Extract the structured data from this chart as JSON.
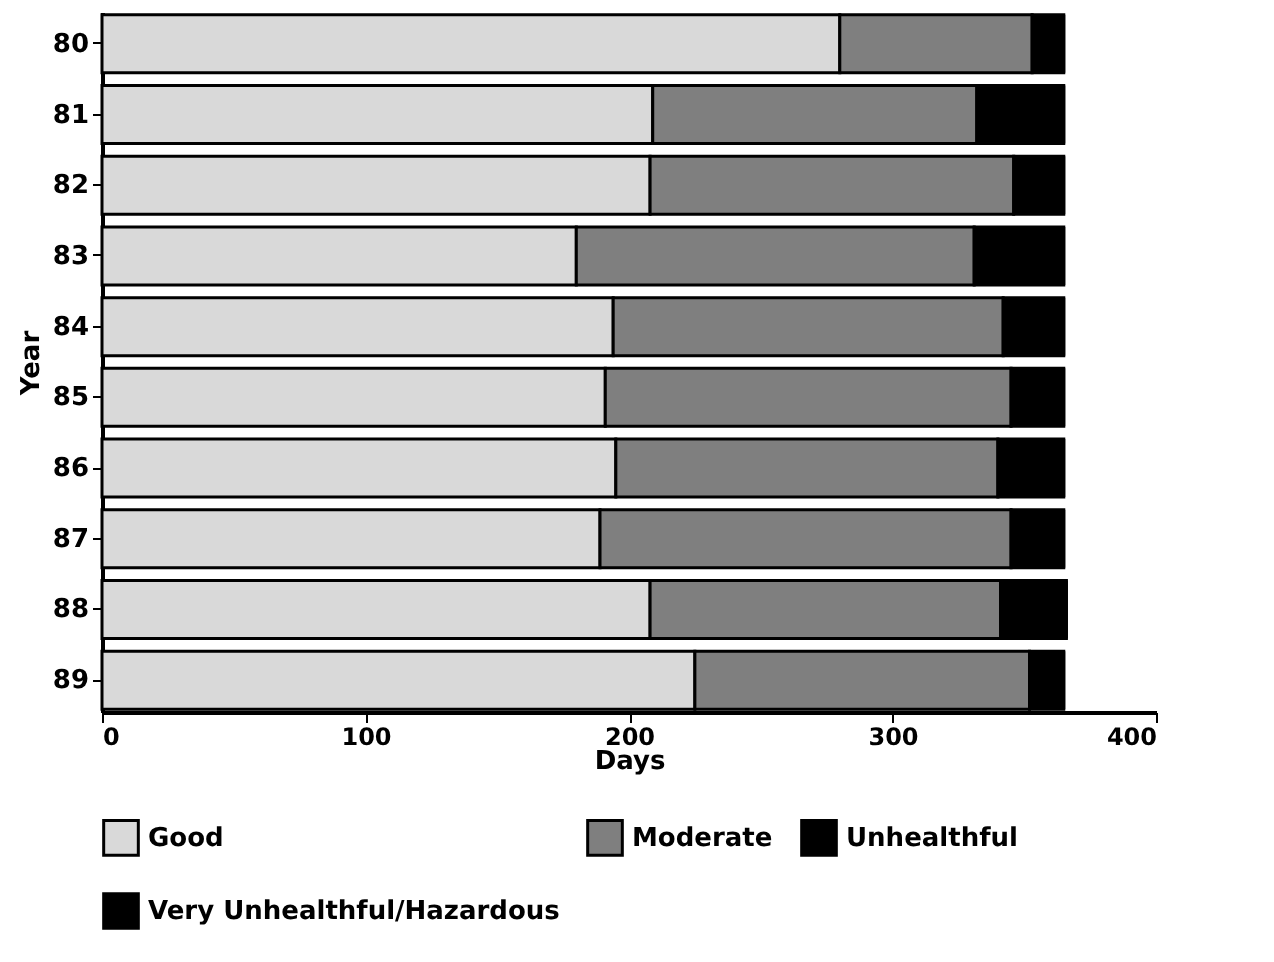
{
  "chart_data": {
    "type": "bar",
    "orientation": "horizontal",
    "stacked": true,
    "xlabel": "Days",
    "ylabel": "Year",
    "categories": [
      "80",
      "81",
      "82",
      "83",
      "84",
      "85",
      "86",
      "87",
      "88",
      "89"
    ],
    "xlim": [
      0,
      400
    ],
    "xticks": [
      0,
      100,
      200,
      300,
      400
    ],
    "grid": false,
    "legend": "bottom",
    "series": [
      {
        "name": "Good",
        "color": "#d9d9d9",
        "values": [
          280,
          209,
          208,
          180,
          194,
          191,
          195,
          189,
          208,
          225
        ]
      },
      {
        "name": "Moderate",
        "color": "#7f7f7f",
        "values": [
          73,
          123,
          138,
          151,
          148,
          154,
          145,
          156,
          133,
          127
        ]
      },
      {
        "name": "Unhealthful",
        "color": "#000000",
        "values": [
          12,
          33,
          19,
          34,
          23,
          20,
          25,
          20,
          25,
          13
        ]
      },
      {
        "name": "Very Unhealthful/Hazardous",
        "color": "#000000",
        "values": [
          0,
          0,
          0,
          0,
          0,
          0,
          0,
          0,
          0,
          0
        ]
      }
    ]
  }
}
